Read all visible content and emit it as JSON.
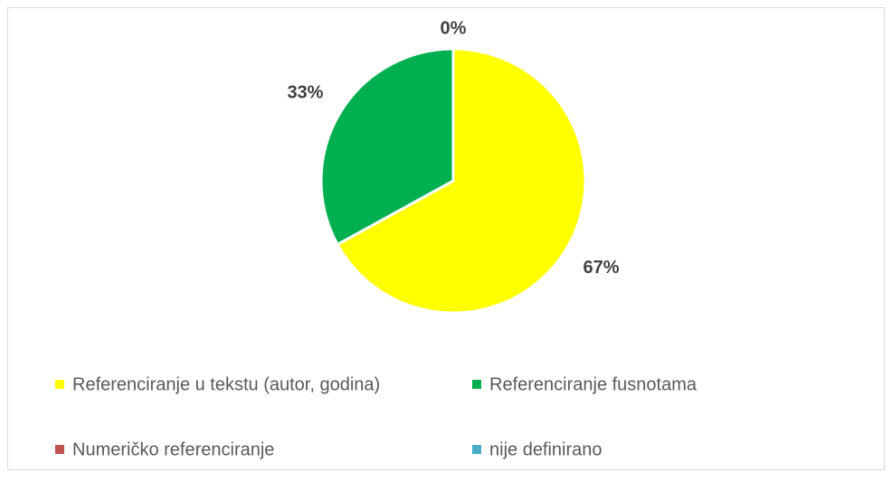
{
  "chart_data": {
    "type": "pie",
    "categories": [
      "Referenciranje u tekstu (autor, godina)",
      "Referenciranje fusnotama",
      "Numeričko referenciranje",
      "nije definirano"
    ],
    "values": [
      67,
      33,
      0,
      0
    ],
    "value_labels": [
      "67%",
      "33%",
      "0%",
      null
    ],
    "colors": [
      "#ffff00",
      "#00b050",
      "#c0504d",
      "#4bacc6"
    ],
    "legend": "bottom"
  }
}
